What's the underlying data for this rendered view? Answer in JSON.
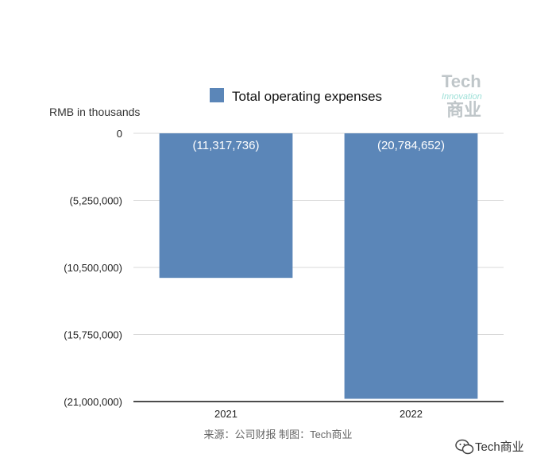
{
  "chart_data": {
    "type": "bar",
    "categories": [
      "2021",
      "2022"
    ],
    "series": [
      {
        "name": "Total operating expenses",
        "values": [
          -11317736,
          -20784652
        ],
        "labels": [
          "(11,317,736)",
          "(20,784,652)"
        ],
        "color": "#5b86b8"
      }
    ],
    "ylim": [
      -21000000,
      0
    ],
    "yticks": [
      0,
      -5250000,
      -10500000,
      -15750000,
      -21000000
    ],
    "ytick_labels": [
      "0",
      "(5,250,000)",
      "(10,500,000)",
      "(15,750,000)",
      "(21,000,000)"
    ],
    "ylabel": "RMB in thousands",
    "xlabel": "",
    "legend": "top-center",
    "grid": true
  },
  "source_note": "来源：公司财报 制图：Tech商业",
  "watermark": {
    "tech": "Tech",
    "innovation": "Innovation",
    "cn": "商业"
  },
  "badge": {
    "text": "Tech商业",
    "icon": "wechat-icon"
  }
}
